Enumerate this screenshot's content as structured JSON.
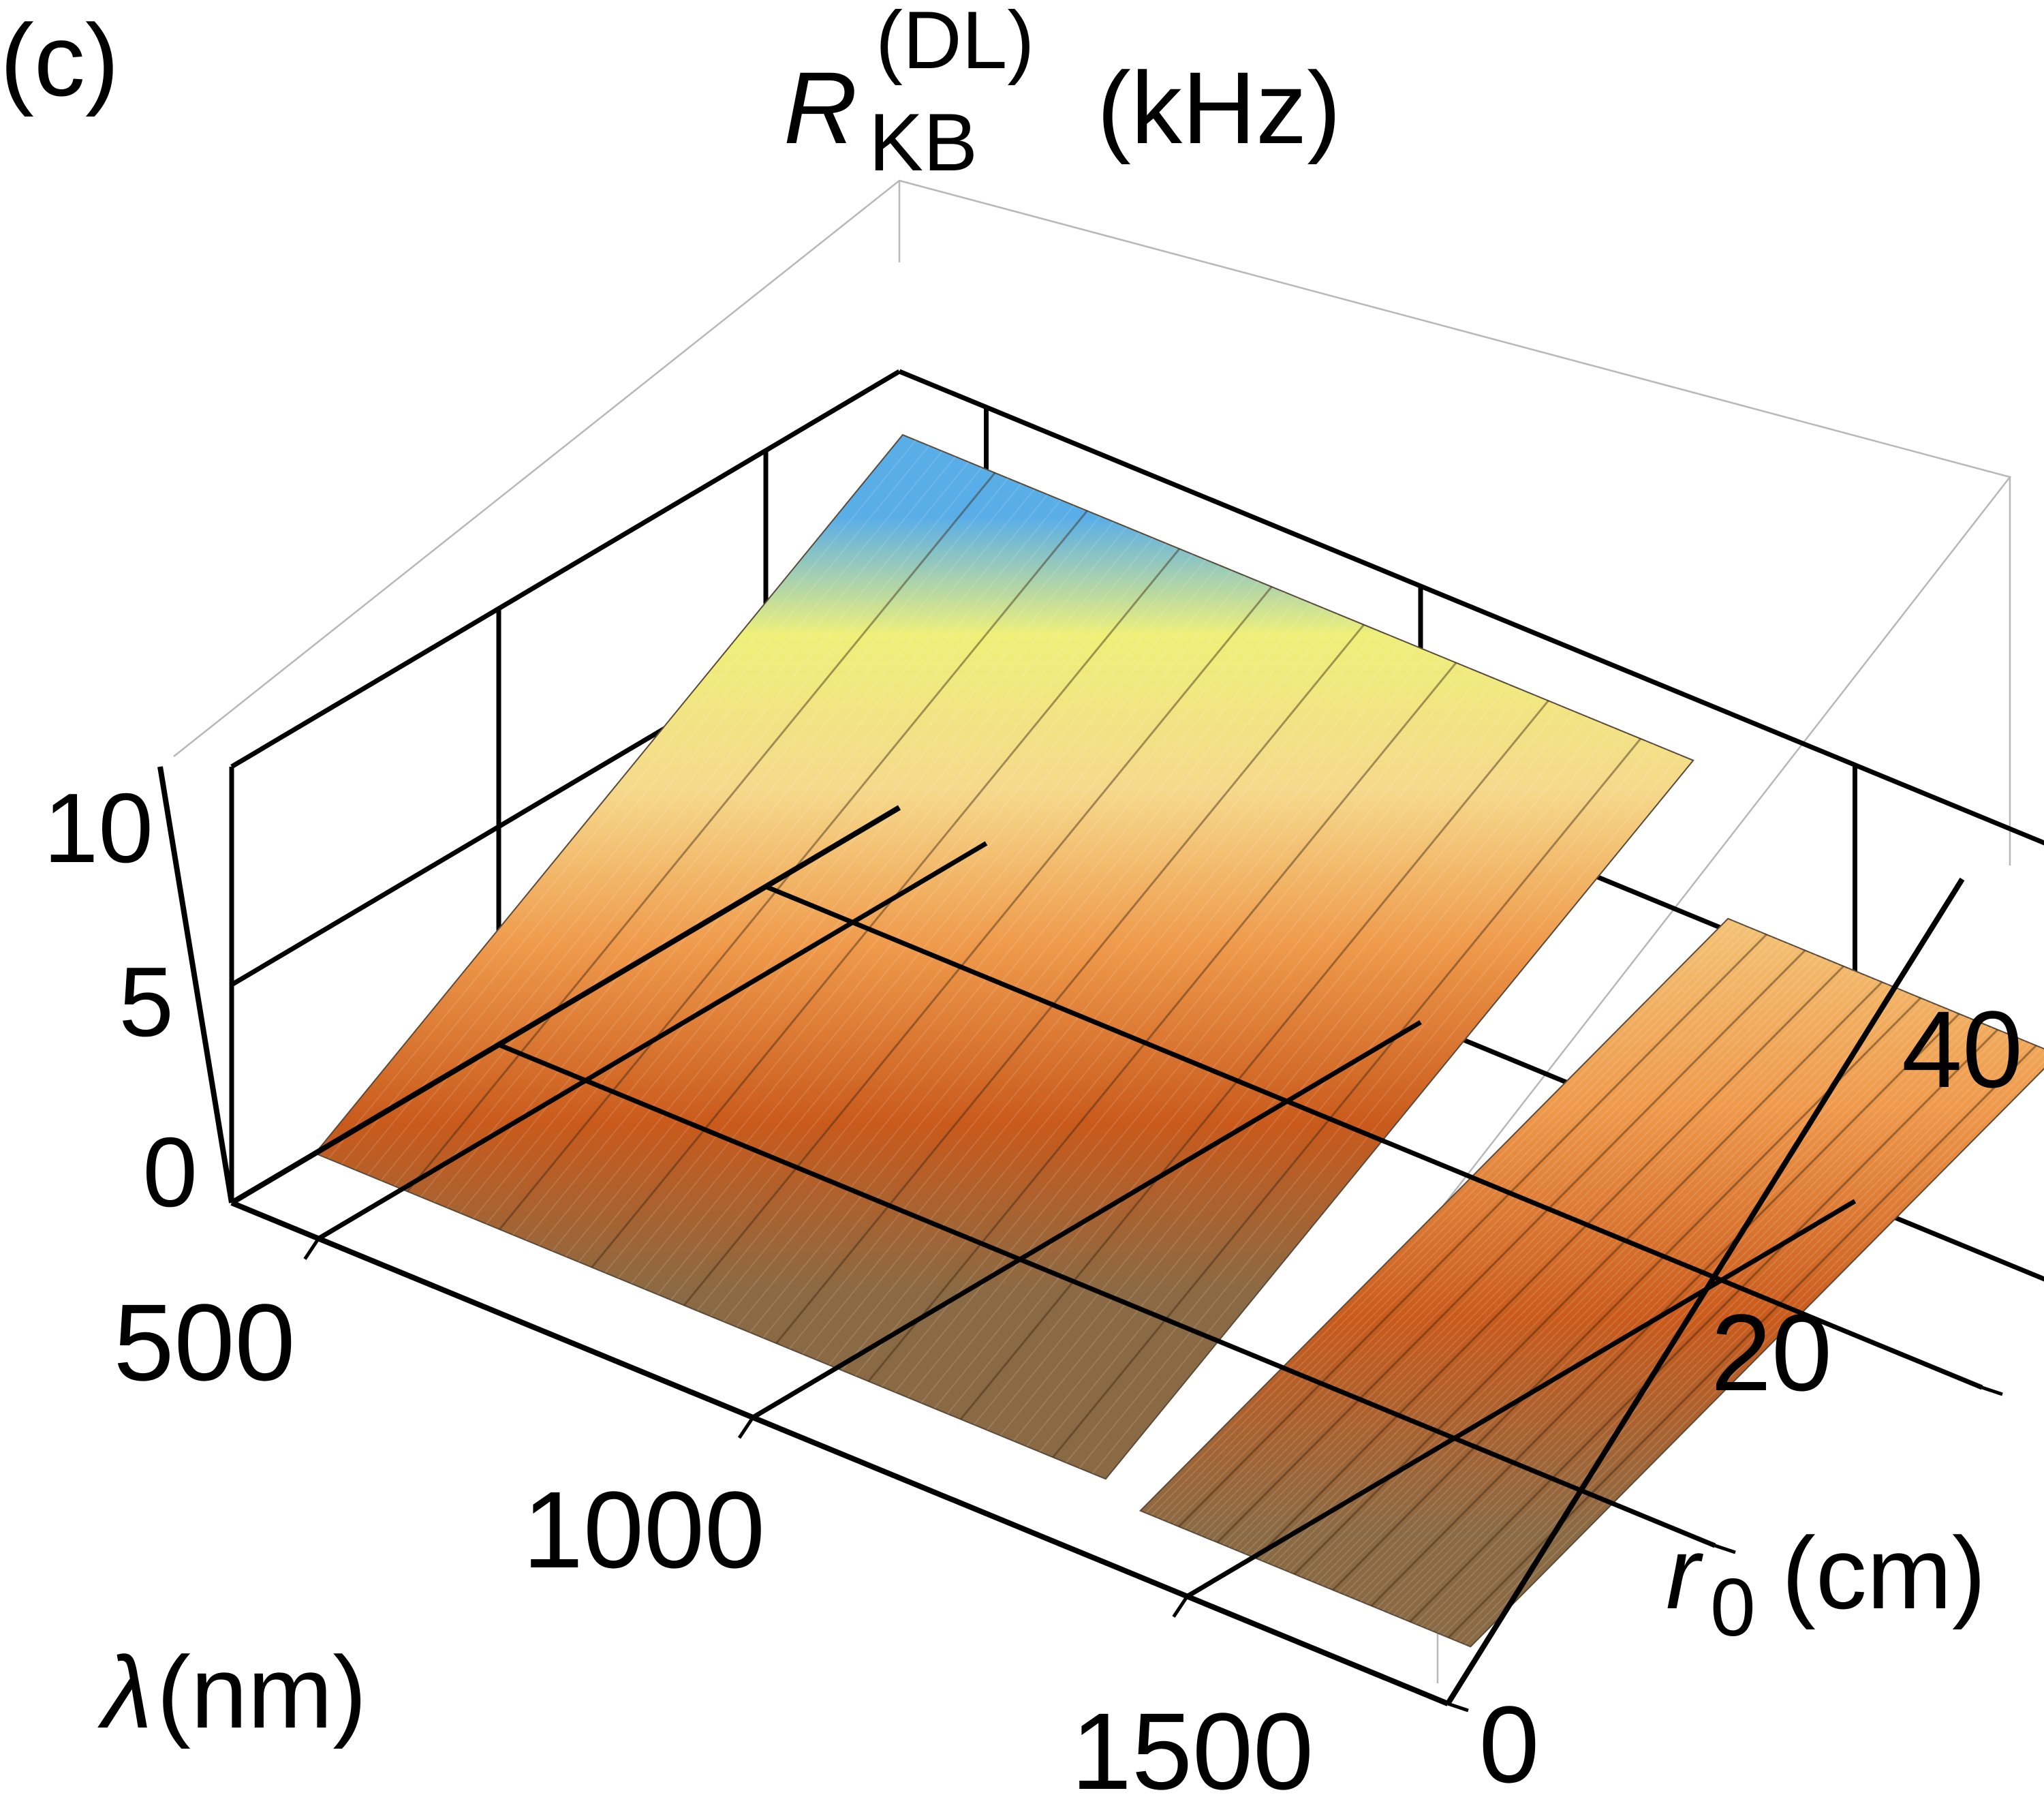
{
  "panel_label": "(c)",
  "chart_data": {
    "type": "surface",
    "title": {
      "symbol": "R",
      "subscript": "KB",
      "superscript": "(DL)",
      "unit": "(kHz)"
    },
    "x_axis": {
      "symbol": "λ",
      "unit": "(nm)",
      "ticks": [
        "500",
        "1000",
        "1500"
      ],
      "range": [
        400,
        1800
      ]
    },
    "y_axis": {
      "symbol": "r",
      "subscript": "0",
      "unit": "(cm)",
      "ticks": [
        "0",
        "20",
        "40"
      ],
      "range": [
        0,
        50
      ]
    },
    "z_axis": {
      "ticks": [
        "0",
        "5",
        "10"
      ],
      "range": [
        0,
        10
      ]
    },
    "surface_bands": [
      {
        "lambda_start": 450,
        "lambda_end": 1360,
        "z_near": 1.0,
        "z_far": 9.5
      },
      {
        "lambda_start": 1400,
        "lambda_end": 1780,
        "z_near": 0.6,
        "z_far": 6.2
      }
    ],
    "colormap": [
      "#8a6a44",
      "#c95a1c",
      "#ef9a4c",
      "#f6d98c",
      "#eef07a",
      "#5aaee8"
    ]
  }
}
